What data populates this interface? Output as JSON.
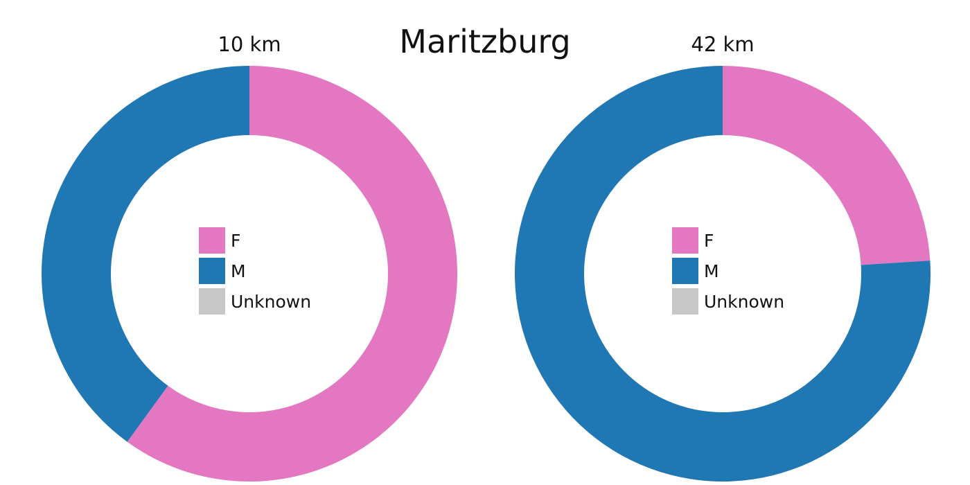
{
  "title": "Maritzburg",
  "colors": {
    "F": "#e377c2",
    "M": "#1f77b4",
    "Unknown": "#c7c7c7"
  },
  "chart_data": [
    {
      "type": "pie",
      "donut": true,
      "title": "10 km",
      "labels": [
        "F",
        "M",
        "Unknown"
      ],
      "values": [
        0.6,
        0.4,
        0.0
      ],
      "legend": "center",
      "start_angle": "12 o'clock",
      "direction": "clockwise"
    },
    {
      "type": "pie",
      "donut": true,
      "title": "42 km",
      "labels": [
        "F",
        "M",
        "Unknown"
      ],
      "values": [
        0.24,
        0.76,
        0.0
      ],
      "legend": "center",
      "start_angle": "12 o'clock",
      "direction": "clockwise"
    }
  ]
}
